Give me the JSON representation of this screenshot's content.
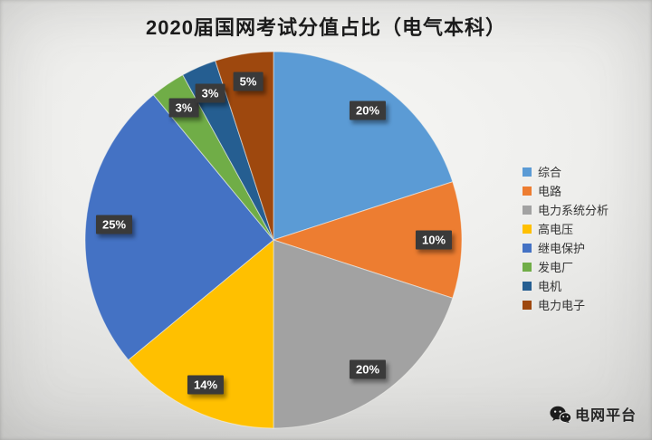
{
  "title": "2020届国网考试分值占比（电气本科）",
  "chart_data": {
    "type": "pie",
    "title": "2020届国网考试分值占比（电气本科）",
    "categories": [
      "综合",
      "电路",
      "电力系统分析",
      "高电压",
      "继电保护",
      "发电厂",
      "电机",
      "电力电子"
    ],
    "values": [
      20,
      10,
      20,
      14,
      25,
      3,
      3,
      5
    ],
    "labels": [
      "20%",
      "10%",
      "20%",
      "14%",
      "25%",
      "3%",
      "3%",
      "5%"
    ],
    "colors": [
      "#5B9BD5",
      "#ED7D31",
      "#A2A2A2",
      "#FFC000",
      "#4472C4",
      "#70AD47",
      "#255E91",
      "#9E480E"
    ],
    "units": "percent",
    "start_angle_deg": 0,
    "direction": "clockwise",
    "legend_position": "right",
    "label_style": {
      "background": "#3A3A3A",
      "text_color": "#FFFFFF",
      "placement": "inside at 0.85 radius"
    }
  },
  "watermark": {
    "icon": "wechat-icon",
    "text": "电网平台"
  }
}
